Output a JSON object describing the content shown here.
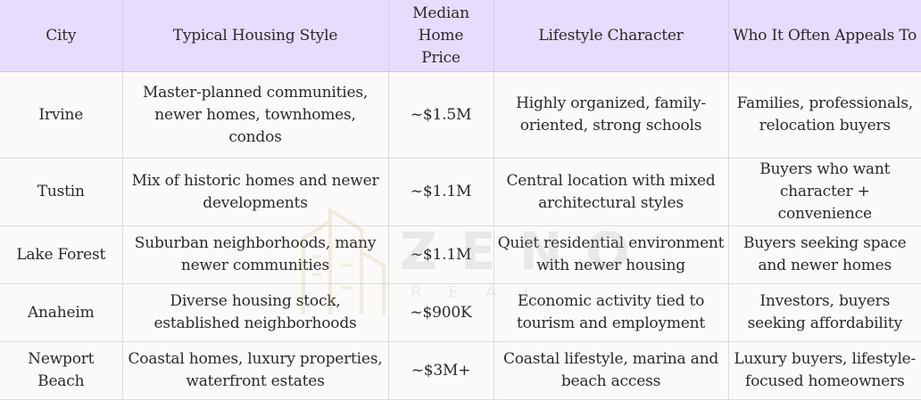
{
  "table": {
    "headers": [
      "City",
      "Typical Housing Style",
      "Median Home Price",
      "Lifestyle Character",
      "Who It Often Appeals To"
    ],
    "rows": [
      [
        "Irvine",
        "Master-planned communities, newer homes, townhomes, condos",
        "~$1.5M",
        "Highly organized, family-oriented, strong schools",
        "Families, professionals, relocation buyers"
      ],
      [
        "Tustin",
        "Mix of historic homes and newer developments",
        "~$1.1M",
        "Central location with mixed architectural styles",
        "Buyers who want character + convenience"
      ],
      [
        "Lake Forest",
        "Suburban neighborhoods, many newer communities",
        "~$1.1M",
        "Quiet residential environment with newer housing",
        "Buyers seeking space and newer homes"
      ],
      [
        "Anaheim",
        "Diverse housing stock, established neighborhoods",
        "~$900K",
        "Economic activity tied to tourism and employment",
        "Investors, buyers seeking affordability"
      ],
      [
        "Newport Beach",
        "Coastal homes, luxury properties, waterfront estates",
        "~$3M+",
        "Coastal lifestyle, marina and beach access",
        "Luxury buyers, lifestyle-focused homeowners"
      ]
    ]
  },
  "watermark": {
    "brand": "ZENO",
    "sub": "REAL"
  }
}
